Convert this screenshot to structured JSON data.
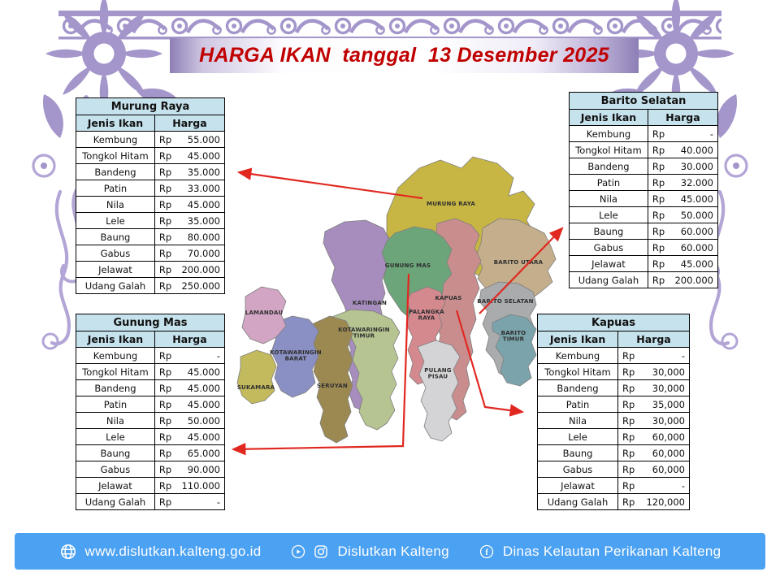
{
  "banner": {
    "title": "HARGA IKAN  tanggal  13 Desember 2025"
  },
  "columns": {
    "fish": "Jenis Ikan",
    "price": "Harga"
  },
  "tables": [
    {
      "id": "murung-raya",
      "region": "Murung Raya",
      "rows": [
        {
          "fish": "Kembung",
          "currency": "Rp",
          "amount": "55.000"
        },
        {
          "fish": "Tongkol Hitam",
          "currency": "Rp",
          "amount": "45.000"
        },
        {
          "fish": "Bandeng",
          "currency": "Rp",
          "amount": "35.000"
        },
        {
          "fish": "Patin",
          "currency": "Rp",
          "amount": "33.000"
        },
        {
          "fish": "Nila",
          "currency": "Rp",
          "amount": "45.000"
        },
        {
          "fish": "Lele",
          "currency": "Rp",
          "amount": "35.000"
        },
        {
          "fish": "Baung",
          "currency": "Rp",
          "amount": "80.000"
        },
        {
          "fish": "Gabus",
          "currency": "Rp",
          "amount": "70.000"
        },
        {
          "fish": "Jelawat",
          "currency": "Rp",
          "amount": "200.000"
        },
        {
          "fish": "Udang Galah",
          "currency": "Rp",
          "amount": "250.000"
        }
      ]
    },
    {
      "id": "barito-selatan",
      "region": "Barito Selatan",
      "rows": [
        {
          "fish": "Kembung",
          "currency": "Rp",
          "amount": "-"
        },
        {
          "fish": "Tongkol Hitam",
          "currency": "Rp",
          "amount": "40.000"
        },
        {
          "fish": "Bandeng",
          "currency": "Rp",
          "amount": "30.000"
        },
        {
          "fish": "Patin",
          "currency": "Rp",
          "amount": "32.000"
        },
        {
          "fish": "Nila",
          "currency": "Rp",
          "amount": "45.000"
        },
        {
          "fish": "Lele",
          "currency": "Rp",
          "amount": "50.000"
        },
        {
          "fish": "Baung",
          "currency": "Rp",
          "amount": "60.000"
        },
        {
          "fish": "Gabus",
          "currency": "Rp",
          "amount": "60.000"
        },
        {
          "fish": "Jelawat",
          "currency": "Rp",
          "amount": "45.000"
        },
        {
          "fish": "Udang Galah",
          "currency": "Rp",
          "amount": "200.000"
        }
      ]
    },
    {
      "id": "gunung-mas",
      "region": "Gunung Mas",
      "rows": [
        {
          "fish": "Kembung",
          "currency": "Rp",
          "amount": "-"
        },
        {
          "fish": "Tongkol Hitam",
          "currency": "Rp",
          "amount": "45.000"
        },
        {
          "fish": "Bandeng",
          "currency": "Rp",
          "amount": "45.000"
        },
        {
          "fish": "Patin",
          "currency": "Rp",
          "amount": "45.000"
        },
        {
          "fish": "Nila",
          "currency": "Rp",
          "amount": "50.000"
        },
        {
          "fish": "Lele",
          "currency": "Rp",
          "amount": "45.000"
        },
        {
          "fish": "Baung",
          "currency": "Rp",
          "amount": "65.000"
        },
        {
          "fish": "Gabus",
          "currency": "Rp",
          "amount": "90.000"
        },
        {
          "fish": "Jelawat",
          "currency": "Rp",
          "amount": "110.000"
        },
        {
          "fish": "Udang Galah",
          "currency": "Rp",
          "amount": "-"
        }
      ]
    },
    {
      "id": "kapuas",
      "region": "Kapuas",
      "rows": [
        {
          "fish": "Kembung",
          "currency": "Rp",
          "amount": "-"
        },
        {
          "fish": "Tongkol Hitam",
          "currency": "Rp",
          "amount": "30,000"
        },
        {
          "fish": "Bandeng",
          "currency": "Rp",
          "amount": "30,000"
        },
        {
          "fish": "Patin",
          "currency": "Rp",
          "amount": "35,000"
        },
        {
          "fish": "Nila",
          "currency": "Rp",
          "amount": "30,000"
        },
        {
          "fish": "Lele",
          "currency": "Rp",
          "amount": "60,000"
        },
        {
          "fish": "Baung",
          "currency": "Rp",
          "amount": "60,000"
        },
        {
          "fish": "Gabus",
          "currency": "Rp",
          "amount": "60,000"
        },
        {
          "fish": "Jelawat",
          "currency": "Rp",
          "amount": "-"
        },
        {
          "fish": "Udang Galah",
          "currency": "Rp",
          "amount": "120,000"
        }
      ]
    }
  ],
  "map": {
    "regions": [
      {
        "id": "murung-raya",
        "name": "MURUNG RAYA",
        "color": "#c8b644"
      },
      {
        "id": "barito-utara",
        "name": "BARITO UTARA",
        "color": "#c5ae8b"
      },
      {
        "id": "katingan",
        "name": "KATINGAN",
        "color": "#a78dbd"
      },
      {
        "id": "kapuas",
        "name": "KAPUAS",
        "color": "#c98d8e"
      },
      {
        "id": "gunung-mas",
        "name": "GUNUNG MAS",
        "color": "#6da57a"
      },
      {
        "id": "barito-selatan",
        "name": "BARITO SELATAN",
        "color": "#aaabad"
      },
      {
        "id": "barito-timur",
        "name": "BARITO\nTIMUR",
        "color": "#7aa3ab"
      },
      {
        "id": "palangka-raya",
        "name": "PALANGKA\nRAYA",
        "color": "#d4898f"
      },
      {
        "id": "pulang-pisau",
        "name": "PULANG\nPISAU",
        "color": "#d4d4d6"
      },
      {
        "id": "kotawaringin-timur",
        "name": "KOTAWARINGIN\nTIMUR",
        "color": "#b5c491"
      },
      {
        "id": "seruyan",
        "name": "SERUYAN",
        "color": "#9c8952"
      },
      {
        "id": "kotawaringin-barat",
        "name": "KOTAWARINGIN\nBARAT",
        "color": "#8a90c3"
      },
      {
        "id": "lamandau",
        "name": "LAMANDAU",
        "color": "#d2a5c4"
      },
      {
        "id": "sukamara",
        "name": "SUKAMARA",
        "color": "#c3ba5e"
      }
    ]
  },
  "footer": {
    "website": "www.dislutkan.kalteng.go.id",
    "account": "Dislutkan Kalteng",
    "organization": "Dinas Kelautan Perikanan Kalteng"
  },
  "colors": {
    "title_text": "#c00000",
    "table_header_bg": "#c6e2ec",
    "footer_bg": "#4ba1f2",
    "frame_purple": "#a496cb",
    "arrow_red": "#e02820"
  }
}
